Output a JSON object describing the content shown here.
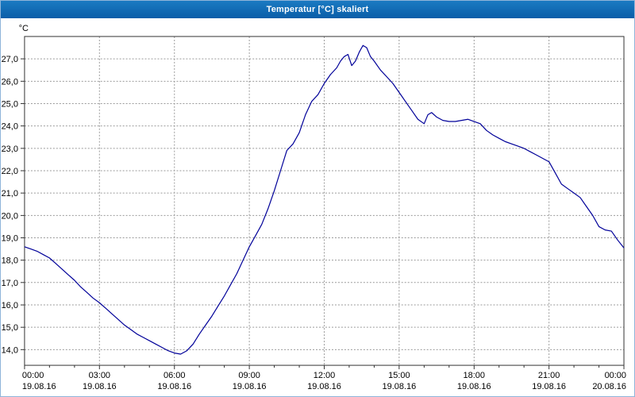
{
  "window": {
    "title": "Temperatur [°C] skaliert",
    "title_bar_color": "#0f6ab4"
  },
  "chart_data": {
    "type": "line",
    "title": "Temperatur [°C] skaliert",
    "unit_label": "°C",
    "line_color": "#000099",
    "grid": true,
    "legend_position": "none",
    "ylim": [
      13.3,
      28.0
    ],
    "xlim_hours": [
      0,
      24
    ],
    "y_ticks": [
      {
        "value": 27,
        "label": "27,0"
      },
      {
        "value": 26,
        "label": "26,0"
      },
      {
        "value": 25,
        "label": "25,0"
      },
      {
        "value": 24,
        "label": "24,0"
      },
      {
        "value": 23,
        "label": "23,0"
      },
      {
        "value": 22,
        "label": "22,0"
      },
      {
        "value": 21,
        "label": "21,0"
      },
      {
        "value": 20,
        "label": "20,0"
      },
      {
        "value": 19,
        "label": "19,0"
      },
      {
        "value": 18,
        "label": "18,0"
      },
      {
        "value": 17,
        "label": "17,0"
      },
      {
        "value": 16,
        "label": "16,0"
      },
      {
        "value": 15,
        "label": "15,0"
      },
      {
        "value": 14,
        "label": "14,0"
      }
    ],
    "x_ticks": [
      {
        "hour": 0,
        "time": "00:00",
        "date": "19.08.16"
      },
      {
        "hour": 3,
        "time": "03:00",
        "date": "19.08.16"
      },
      {
        "hour": 6,
        "time": "06:00",
        "date": "19.08.16"
      },
      {
        "hour": 9,
        "time": "09:00",
        "date": "19.08.16"
      },
      {
        "hour": 12,
        "time": "12:00",
        "date": "19.08.16"
      },
      {
        "hour": 15,
        "time": "15:00",
        "date": "19.08.16"
      },
      {
        "hour": 18,
        "time": "18:00",
        "date": "19.08.16"
      },
      {
        "hour": 21,
        "time": "21:00",
        "date": "19.08.16"
      },
      {
        "hour": 24,
        "time": "00:00",
        "date": "20.08.16"
      }
    ],
    "series": [
      {
        "name": "Temperatur [°C]",
        "points": [
          [
            0,
            18.6
          ],
          [
            0.25,
            18.5
          ],
          [
            0.5,
            18.4
          ],
          [
            0.75,
            18.25
          ],
          [
            1,
            18.1
          ],
          [
            1.25,
            17.85
          ],
          [
            1.5,
            17.6
          ],
          [
            1.75,
            17.35
          ],
          [
            2,
            17.1
          ],
          [
            2.25,
            16.8
          ],
          [
            2.5,
            16.55
          ],
          [
            2.75,
            16.3
          ],
          [
            3,
            16.1
          ],
          [
            3.25,
            15.85
          ],
          [
            3.5,
            15.6
          ],
          [
            3.75,
            15.35
          ],
          [
            4,
            15.1
          ],
          [
            4.25,
            14.9
          ],
          [
            4.5,
            14.7
          ],
          [
            4.75,
            14.55
          ],
          [
            5,
            14.4
          ],
          [
            5.25,
            14.25
          ],
          [
            5.5,
            14.1
          ],
          [
            5.75,
            13.95
          ],
          [
            6,
            13.85
          ],
          [
            6.25,
            13.8
          ],
          [
            6.5,
            13.95
          ],
          [
            6.75,
            14.25
          ],
          [
            7,
            14.7
          ],
          [
            7.25,
            15.1
          ],
          [
            7.5,
            15.5
          ],
          [
            7.75,
            15.95
          ],
          [
            8,
            16.4
          ],
          [
            8.25,
            16.9
          ],
          [
            8.5,
            17.4
          ],
          [
            8.75,
            18.0
          ],
          [
            9,
            18.6
          ],
          [
            9.25,
            19.1
          ],
          [
            9.5,
            19.6
          ],
          [
            9.75,
            20.3
          ],
          [
            10,
            21.1
          ],
          [
            10.25,
            22.0
          ],
          [
            10.5,
            22.9
          ],
          [
            10.75,
            23.2
          ],
          [
            11,
            23.7
          ],
          [
            11.25,
            24.5
          ],
          [
            11.5,
            25.1
          ],
          [
            11.75,
            25.4
          ],
          [
            12,
            25.9
          ],
          [
            12.25,
            26.3
          ],
          [
            12.5,
            26.6
          ],
          [
            12.65,
            26.9
          ],
          [
            12.8,
            27.1
          ],
          [
            12.95,
            27.2
          ],
          [
            13.1,
            26.7
          ],
          [
            13.25,
            26.9
          ],
          [
            13.4,
            27.3
          ],
          [
            13.55,
            27.6
          ],
          [
            13.7,
            27.5
          ],
          [
            13.85,
            27.1
          ],
          [
            14,
            26.9
          ],
          [
            14.25,
            26.5
          ],
          [
            14.5,
            26.2
          ],
          [
            14.75,
            25.9
          ],
          [
            15,
            25.5
          ],
          [
            15.25,
            25.1
          ],
          [
            15.5,
            24.7
          ],
          [
            15.75,
            24.3
          ],
          [
            16,
            24.1
          ],
          [
            16.15,
            24.5
          ],
          [
            16.3,
            24.6
          ],
          [
            16.5,
            24.4
          ],
          [
            16.75,
            24.25
          ],
          [
            17,
            24.2
          ],
          [
            17.25,
            24.2
          ],
          [
            17.5,
            24.25
          ],
          [
            17.75,
            24.3
          ],
          [
            18,
            24.2
          ],
          [
            18.25,
            24.1
          ],
          [
            18.5,
            23.8
          ],
          [
            18.75,
            23.6
          ],
          [
            19,
            23.45
          ],
          [
            19.25,
            23.3
          ],
          [
            19.5,
            23.2
          ],
          [
            19.75,
            23.1
          ],
          [
            20,
            23.0
          ],
          [
            20.25,
            22.85
          ],
          [
            20.5,
            22.7
          ],
          [
            20.75,
            22.55
          ],
          [
            21,
            22.4
          ],
          [
            21.25,
            21.9
          ],
          [
            21.5,
            21.4
          ],
          [
            21.75,
            21.2
          ],
          [
            22,
            21.0
          ],
          [
            22.25,
            20.8
          ],
          [
            22.5,
            20.4
          ],
          [
            22.75,
            20.0
          ],
          [
            23,
            19.5
          ],
          [
            23.25,
            19.35
          ],
          [
            23.5,
            19.3
          ],
          [
            23.75,
            18.9
          ],
          [
            24,
            18.55
          ]
        ]
      }
    ]
  }
}
